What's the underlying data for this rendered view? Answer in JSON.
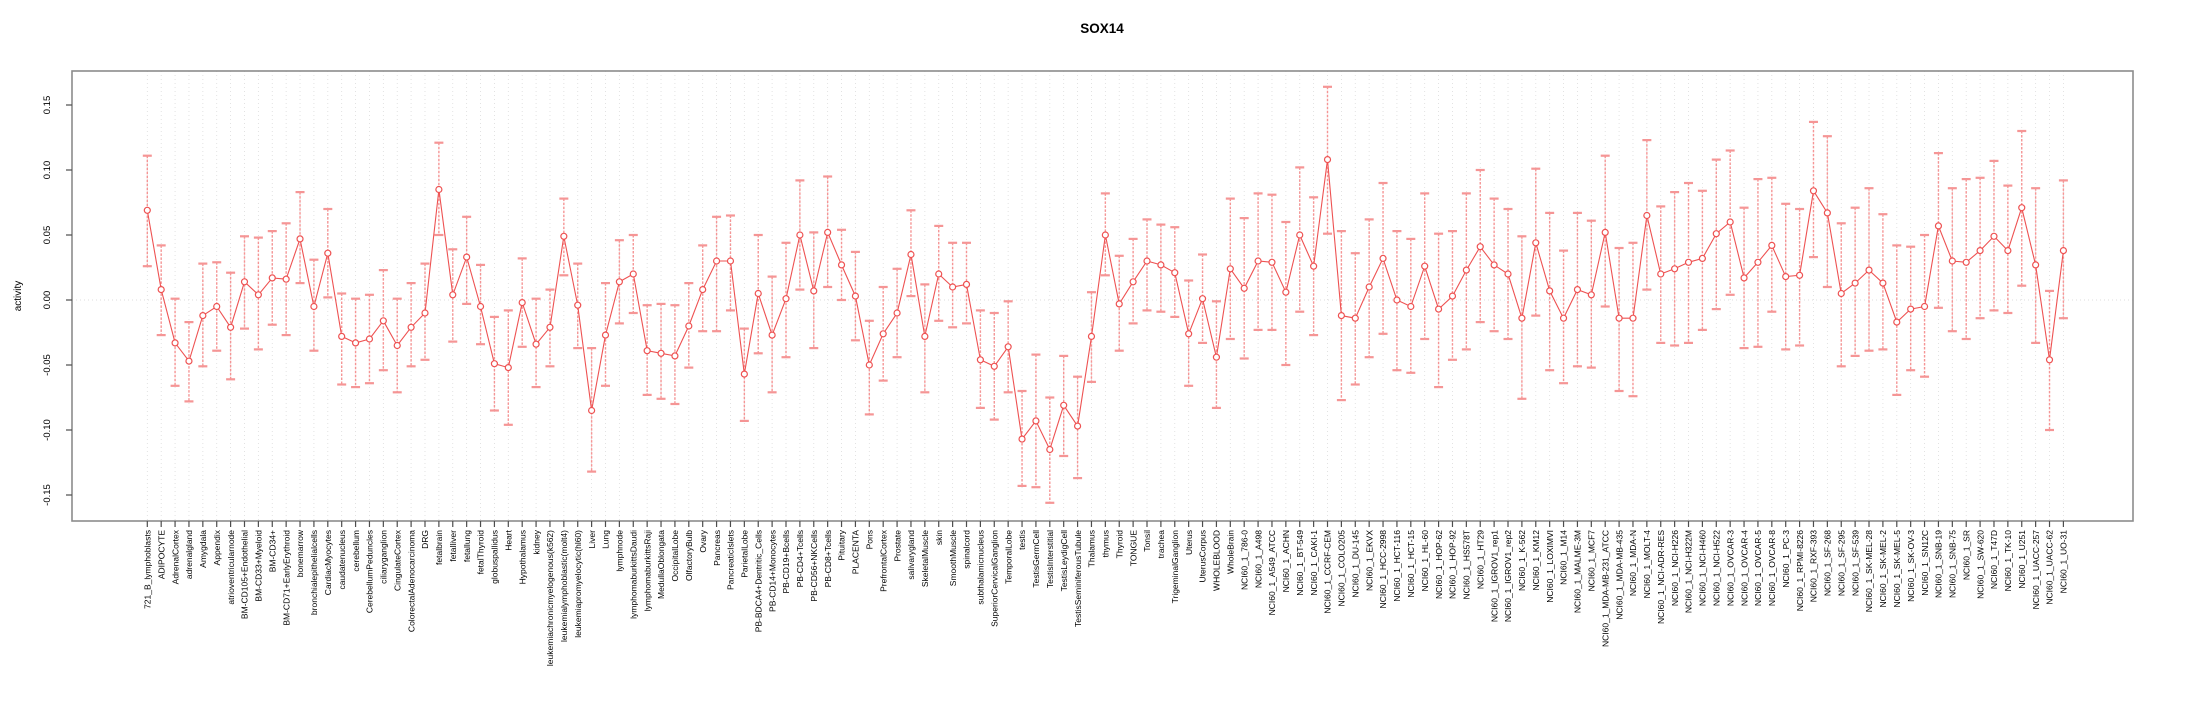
{
  "chart_data": {
    "type": "line",
    "title": "SOX14",
    "ylabel": "activity",
    "xlabel": "",
    "ylim": [
      -0.17,
      0.177
    ],
    "grid": "vertical-dashed-per-category, dotted zero line",
    "legend": "none",
    "marker": "open-circle-with-error-bars",
    "yticks": [
      -0.15,
      -0.1,
      -0.05,
      0.0,
      0.05,
      0.1,
      0.15
    ],
    "ytick_labels": [
      "-0.15",
      "-0.10",
      "-0.05",
      "0.00",
      "0.05",
      "0.10",
      "0.15"
    ],
    "colors": {
      "series": "#ee5252",
      "whisker": "#f59595",
      "frame": "#8c8c8c",
      "tick": "#4d4d4d",
      "grid": "#dcdcdc",
      "zero_line": "#dcdcdc",
      "background": "#ffffff"
    },
    "categories": [
      "721_B_lymphoblasts",
      "ADIPOCYTE",
      "AdrenalCortex",
      "adrenalgland",
      "Amygdala",
      "Appendix",
      "atrioventricularnode",
      "BM-CD105+Endothelial",
      "BM-CD33+Myeloid",
      "BM-CD34+",
      "BM-CD71+EarlyErythroid",
      "bonemarrow",
      "bronchialepithelialcells",
      "CardiacMyocytes",
      "caudatenucleus",
      "cerebellum",
      "CerebellumPeduncles",
      "ciliaryganglion",
      "CingulateCortex",
      "ColorectalAdenocarcinoma",
      "DRG",
      "fetalbrain",
      "fetalliver",
      "fetallung",
      "fetalThyroid",
      "globuspallidus",
      "Heart",
      "Hypothalamus",
      "kidney",
      "leukemiachronicmyelogenous(k562)",
      "leukemialymphoblastic(molt4)",
      "leukemiapromyelocytic(hl60)",
      "Liver",
      "Lung",
      "lymphnode",
      "lymphomaburkittsDaudi",
      "lymphomaburkittsRaji",
      "MedullaOblongata",
      "OccipitalLobe",
      "OlfactoryBulb",
      "Ovary",
      "Pancreas",
      "PancreaticIslets",
      "ParietalLobe",
      "PB-BDCA4+Dentritic_Cells",
      "PB-CD14+Monocytes",
      "PB-CD19+Bcells",
      "PB-CD4+Tcells",
      "PB-CD56+NKCells",
      "PB-CD8+Tcells",
      "Pituitary",
      "PLACENTA",
      "Pons",
      "PrefrontalCortex",
      "Prostate",
      "salivarygland",
      "SkeletalMuscle",
      "skin",
      "SmoothMuscle",
      "spinalcord",
      "subthalamicnucleus",
      "SuperiorCervicalGanglion",
      "TemporalLobe",
      "testis",
      "TestisGermCell",
      "TestisInterstitial",
      "TestisLeydigCell",
      "TestisSeminiferousTubule",
      "Thalamus",
      "thymus",
      "Thyroid",
      "TONGUE",
      "Tonsil",
      "trachea",
      "TrigeminalGanglion",
      "Uterus",
      "UterusCorpus",
      "WHOLEBLOOD",
      "WholeBrain",
      "NCI60_1_786-0",
      "NCI60_1_A498",
      "NCI60_1_A549_ATCC",
      "NCI60_1_ACHN",
      "NCI60_1_BT-549",
      "NCI60_1_CAKI-1",
      "NCI60_1_CCRF-CEM",
      "NCI60_1_COLO205",
      "NCI60_1_DU-145",
      "NCI60_1_EKVX",
      "NCI60_1_HCC-2998",
      "NCI60_1_HCT-116",
      "NCI60_1_HCT-15",
      "NCI60_1_HL-60",
      "NCI60_1_HOP-62",
      "NCI60_1_HOP-92",
      "NCI60_1_HS578T",
      "NCI60_1_HT29",
      "NCI60_1_IGROV1_rep1",
      "NCI60_1_IGROV1_rep2",
      "NCI60_1_K-562",
      "NCI60_1_KM12",
      "NCI60_1_LOXIMVI",
      "NCI60_1_M14",
      "NCI60_1_MALME-3M",
      "NCI60_1_MCF7",
      "NCI60_1_MDA-MB-231_ATCC",
      "NCI60_1_MDA-MB-435",
      "NCI60_1_MDA-N",
      "NCI60_1_MOLT-4",
      "NCI60_1_NCI-ADR-RES",
      "NCI60_1_NCI-H226",
      "NCI60_1_NCI-H322M",
      "NCI60_1_NCI-H460",
      "NCI60_1_NCI-H522",
      "NCI60_1_OVCAR-3",
      "NCI60_1_OVCAR-4",
      "NCI60_1_OVCAR-5",
      "NCI60_1_OVCAR-8",
      "NCI60_1_PC-3",
      "NCI60_1_RPMI-8226",
      "NCI60_1_RXF-393",
      "NCI60_1_SF-268",
      "NCI60_1_SF-295",
      "NCI60_1_SF-539",
      "NCI60_1_SK-MEL-28",
      "NCI60_1_SK-MEL-2",
      "NCI60_1_SK-MEL-5",
      "NCI60_1_SK-OV-3",
      "NCI60_1_SN12C",
      "NCI60_1_SNB-19",
      "NCI60_1_SNB-75",
      "NCI60_1_SR",
      "NCI60_1_SW-620",
      "NCI60_1_T47D",
      "NCI60_1_TK-10",
      "NCI60_1_U251",
      "NCI60_1_UACC-257",
      "NCI60_1_UACC-62",
      "NCI60_1_UO-31"
    ],
    "values": [
      0.069,
      0.008,
      -0.033,
      -0.047,
      -0.012,
      -0.005,
      -0.021,
      0.014,
      0.004,
      0.017,
      0.016,
      0.047,
      -0.005,
      0.036,
      -0.028,
      -0.033,
      -0.03,
      -0.016,
      -0.035,
      -0.021,
      -0.01,
      0.085,
      0.004,
      0.033,
      -0.005,
      -0.049,
      -0.052,
      -0.002,
      -0.034,
      -0.021,
      0.049,
      -0.004,
      -0.085,
      -0.027,
      0.014,
      0.02,
      -0.039,
      -0.041,
      -0.043,
      -0.02,
      0.008,
      0.03,
      0.03,
      -0.057,
      0.005,
      -0.027,
      0.001,
      0.05,
      0.007,
      0.052,
      0.027,
      0.003,
      -0.05,
      -0.026,
      -0.01,
      0.035,
      -0.028,
      0.02,
      0.01,
      0.012,
      -0.046,
      -0.051,
      -0.036,
      -0.107,
      -0.093,
      -0.115,
      -0.081,
      -0.097,
      -0.028,
      0.05,
      -0.003,
      0.014,
      0.03,
      0.027,
      0.021,
      -0.026,
      0.001,
      -0.044,
      0.024,
      0.009,
      0.03,
      0.029,
      0.006,
      0.05,
      0.026,
      0.108,
      -0.012,
      -0.014,
      0.01,
      0.032,
      0.0,
      -0.005,
      0.026,
      -0.007,
      0.003,
      0.023,
      0.041,
      0.027,
      0.02,
      -0.014,
      0.044,
      0.007,
      -0.014,
      0.008,
      0.004,
      0.052,
      -0.014,
      -0.014,
      0.065,
      0.02,
      0.024,
      0.029,
      0.032,
      0.051,
      0.06,
      0.017,
      0.029,
      0.042,
      0.018,
      0.019,
      0.084,
      0.067,
      0.005,
      0.013,
      0.023,
      0.013,
      -0.017,
      -0.007,
      -0.005,
      0.057,
      0.03,
      0.029,
      0.038,
      0.049,
      0.038,
      0.071,
      0.027,
      -0.046,
      0.038
    ],
    "err_lo": [
      0.026,
      -0.027,
      -0.066,
      -0.078,
      -0.051,
      -0.039,
      -0.061,
      -0.022,
      -0.038,
      -0.019,
      -0.027,
      0.013,
      -0.039,
      0.002,
      -0.065,
      -0.067,
      -0.064,
      -0.054,
      -0.071,
      -0.051,
      -0.046,
      0.05,
      -0.032,
      -0.003,
      -0.034,
      -0.085,
      -0.096,
      -0.036,
      -0.067,
      -0.051,
      0.019,
      -0.037,
      -0.132,
      -0.066,
      -0.018,
      -0.01,
      -0.073,
      -0.076,
      -0.08,
      -0.052,
      -0.024,
      -0.024,
      -0.008,
      -0.093,
      -0.041,
      -0.071,
      -0.044,
      0.008,
      -0.037,
      0.01,
      0.0,
      -0.031,
      -0.088,
      -0.062,
      -0.044,
      0.003,
      -0.071,
      -0.016,
      -0.021,
      -0.018,
      -0.083,
      -0.092,
      -0.071,
      -0.143,
      -0.144,
      -0.156,
      -0.12,
      -0.137,
      -0.063,
      0.019,
      -0.039,
      -0.018,
      -0.008,
      -0.009,
      -0.013,
      -0.066,
      -0.033,
      -0.083,
      -0.03,
      -0.045,
      -0.023,
      -0.023,
      -0.05,
      -0.009,
      -0.027,
      0.051,
      -0.077,
      -0.065,
      -0.044,
      -0.026,
      -0.054,
      -0.056,
      -0.03,
      -0.067,
      -0.046,
      -0.038,
      -0.017,
      -0.024,
      -0.03,
      -0.076,
      -0.012,
      -0.054,
      -0.064,
      -0.051,
      -0.052,
      -0.005,
      -0.07,
      -0.074,
      0.008,
      -0.033,
      -0.035,
      -0.033,
      -0.023,
      -0.007,
      0.004,
      -0.037,
      -0.036,
      -0.009,
      -0.038,
      -0.035,
      0.033,
      0.01,
      -0.051,
      -0.043,
      -0.039,
      -0.038,
      -0.073,
      -0.054,
      -0.059,
      -0.006,
      -0.024,
      -0.03,
      -0.014,
      -0.008,
      -0.01,
      0.011,
      -0.033,
      -0.1,
      -0.014
    ],
    "err_hi": [
      0.111,
      0.042,
      0.001,
      -0.017,
      0.028,
      0.029,
      0.021,
      0.049,
      0.048,
      0.053,
      0.059,
      0.083,
      0.031,
      0.07,
      0.005,
      0.001,
      0.004,
      0.023,
      0.001,
      0.013,
      0.028,
      0.121,
      0.039,
      0.064,
      0.027,
      -0.013,
      -0.008,
      0.032,
      0.001,
      0.008,
      0.078,
      0.028,
      -0.037,
      0.013,
      0.046,
      0.05,
      -0.004,
      -0.003,
      -0.004,
      0.013,
      0.042,
      0.064,
      0.065,
      -0.022,
      0.05,
      0.018,
      0.044,
      0.092,
      0.052,
      0.095,
      0.054,
      0.037,
      -0.016,
      0.01,
      0.024,
      0.069,
      0.012,
      0.057,
      0.044,
      0.044,
      -0.008,
      -0.01,
      -0.001,
      -0.07,
      -0.042,
      -0.075,
      -0.043,
      -0.059,
      0.006,
      0.082,
      0.034,
      0.047,
      0.062,
      0.058,
      0.056,
      0.015,
      0.035,
      -0.001,
      0.078,
      0.063,
      0.082,
      0.081,
      0.06,
      0.102,
      0.079,
      0.164,
      0.053,
      0.036,
      0.062,
      0.09,
      0.053,
      0.047,
      0.082,
      0.051,
      0.053,
      0.082,
      0.1,
      0.078,
      0.07,
      0.049,
      0.101,
      0.067,
      0.038,
      0.067,
      0.061,
      0.111,
      0.04,
      0.044,
      0.123,
      0.072,
      0.083,
      0.09,
      0.084,
      0.108,
      0.115,
      0.071,
      0.093,
      0.094,
      0.074,
      0.07,
      0.137,
      0.126,
      0.059,
      0.071,
      0.086,
      0.066,
      0.042,
      0.041,
      0.05,
      0.113,
      0.086,
      0.093,
      0.094,
      0.107,
      0.088,
      0.13,
      0.086,
      0.007,
      0.092
    ]
  }
}
